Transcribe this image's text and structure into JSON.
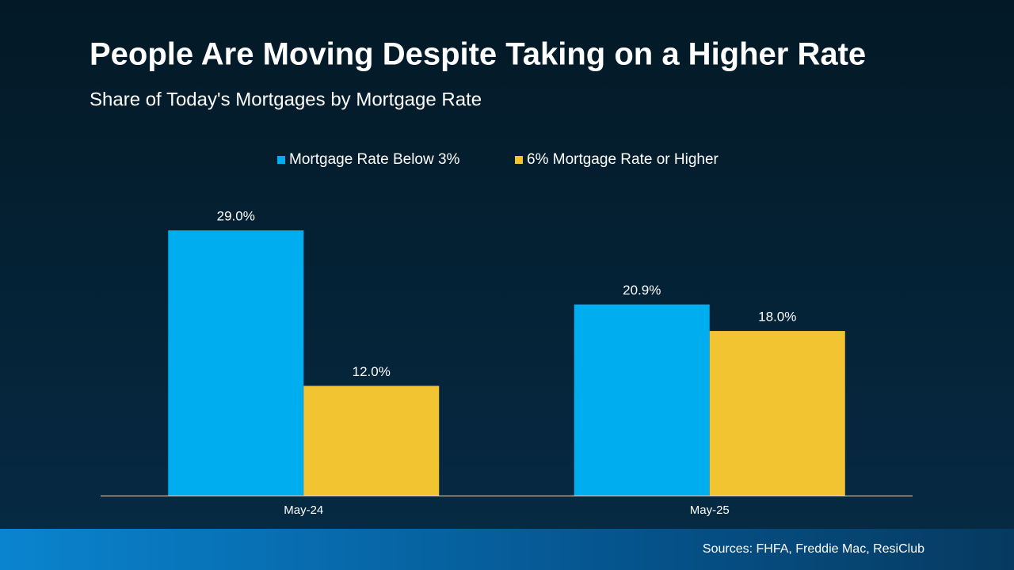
{
  "chart_data": {
    "type": "bar",
    "title": "People Are Moving Despite Taking on a Higher Rate",
    "subtitle": "Share of Today's Mortgages by Mortgage Rate",
    "source": "Sources: FHFA, Freddie Mac, ResiClub",
    "categories": [
      "May-24",
      "May-25"
    ],
    "series": [
      {
        "name": "Mortgage Rate Below 3%",
        "color": "#00aeef",
        "values": [
          29.0,
          20.9
        ],
        "value_labels": [
          "29.0%",
          "20.9%"
        ]
      },
      {
        "name": "6% Mortgage Rate or Higher",
        "color": "#f2c431",
        "values": [
          12.0,
          18.0
        ],
        "value_labels": [
          "12.0%",
          "18.0%"
        ]
      }
    ],
    "legend": "top"
  }
}
